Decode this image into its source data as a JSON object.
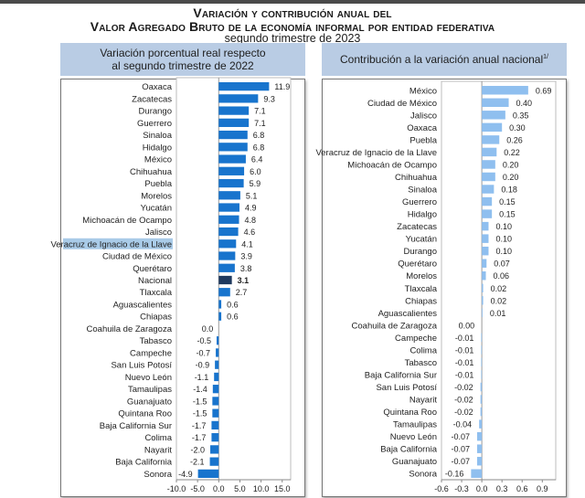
{
  "title": {
    "line1": "Variación y contribución anual del",
    "line2": "Valor Agregado Bruto de la economía informal por entidad federativa",
    "line3": "segundo trimestre de 2023"
  },
  "colors": {
    "bar_state": "#1874cd",
    "bar_national": "#1f3a5f",
    "bar_contribution": "#8fbfef",
    "header_bg": "#b9cce4",
    "highlight": "#a9cbe8"
  },
  "chart_data": [
    {
      "type": "bar",
      "orientation": "horizontal",
      "header_line1": "Variación porcentual real respecto",
      "header_line2": "al segundo trimestre de 2022",
      "categories": [
        "Oaxaca",
        "Zacatecas",
        "Durango",
        "Guerrero",
        "Sinaloa",
        "Hidalgo",
        "México",
        "Chihuahua",
        "Puebla",
        "Morelos",
        "Yucatán",
        "Michoacán de Ocampo",
        "Jalisco",
        "Veracruz de Ignacio de la Llave",
        "Ciudad de México",
        "Querétaro",
        "Nacional",
        "Tlaxcala",
        "Aguascalientes",
        "Chiapas",
        "Coahuila de Zaragoza",
        "Tabasco",
        "Campeche",
        "San Luis Potosí",
        "Nuevo León",
        "Tamaulipas",
        "Guanajuato",
        "Quintana Roo",
        "Baja California Sur",
        "Colima",
        "Nayarit",
        "Baja California",
        "Sonora"
      ],
      "values": [
        11.9,
        9.3,
        7.1,
        7.1,
        6.8,
        6.8,
        6.4,
        6.0,
        5.9,
        5.1,
        4.9,
        4.8,
        4.6,
        4.1,
        3.9,
        3.8,
        3.1,
        2.7,
        0.6,
        0.6,
        0.0,
        -0.5,
        -0.7,
        -0.9,
        -1.1,
        -1.4,
        -1.5,
        -1.5,
        -1.7,
        -1.7,
        -2.0,
        -2.1,
        -4.9
      ],
      "value_labels": [
        "11.9",
        "9.3",
        "7.1",
        "7.1",
        "6.8",
        "6.8",
        "6.4",
        "6.0",
        "5.9",
        "5.1",
        "4.9",
        "4.8",
        "4.6",
        "4.1",
        "3.9",
        "3.8",
        "3.1",
        "2.7",
        "0.6",
        "0.6",
        "0.0",
        "-0.5",
        "-0.7",
        "-0.9",
        "-1.1",
        "-1.4",
        "-1.5",
        "-1.5",
        "-1.7",
        "-1.7",
        "-2.0",
        "-2.1",
        "-4.9"
      ],
      "highlight_category": "Veracruz de Ignacio de la Llave",
      "emphasis_category": "Nacional",
      "xlim": [
        -10,
        17
      ],
      "xticks": [
        -10,
        -5,
        0,
        5,
        10,
        15
      ],
      "xtick_labels": [
        "-10.0",
        "-5.0",
        "0.0",
        "5.0",
        "10.0",
        "15.0"
      ]
    },
    {
      "type": "bar",
      "orientation": "horizontal",
      "header": "Contribución a la variación anual nacional",
      "header_note": "1/",
      "categories": [
        "México",
        "Ciudad de México",
        "Jalisco",
        "Oaxaca",
        "Puebla",
        "Veracruz de Ignacio de la Llave",
        "Michoacán de Ocampo",
        "Chihuahua",
        "Sinaloa",
        "Guerrero",
        "Hidalgo",
        "Zacatecas",
        "Yucatán",
        "Durango",
        "Querétaro",
        "Morelos",
        "Tlaxcala",
        "Chiapas",
        "Aguascalientes",
        "Coahuila de Zaragoza",
        "Campeche",
        "Colima",
        "Tabasco",
        "Baja California Sur",
        "San Luis Potosí",
        "Nayarit",
        "Quintana Roo",
        "Tamaulipas",
        "Nuevo León",
        "Baja California",
        "Guanajuato",
        "Sonora"
      ],
      "values": [
        0.69,
        0.4,
        0.35,
        0.3,
        0.26,
        0.22,
        0.2,
        0.2,
        0.18,
        0.15,
        0.15,
        0.1,
        0.1,
        0.1,
        0.07,
        0.06,
        0.02,
        0.02,
        0.01,
        0.0,
        -0.01,
        -0.01,
        -0.01,
        -0.01,
        -0.02,
        -0.02,
        -0.02,
        -0.04,
        -0.07,
        -0.07,
        -0.07,
        -0.16
      ],
      "value_labels": [
        "0.69",
        "0.40",
        "0.35",
        "0.30",
        "0.26",
        "0.22",
        "0.20",
        "0.20",
        "0.18",
        "0.15",
        "0.15",
        "0.10",
        "0.10",
        "0.10",
        "0.07",
        "0.06",
        "0.02",
        "0.02",
        "0.01",
        "0.00",
        "-0.01",
        "-0.01",
        "-0.01",
        "-0.01",
        "-0.02",
        "-0.02",
        "-0.02",
        "-0.04",
        "-0.07",
        "-0.07",
        "-0.07",
        "-0.16"
      ],
      "xlim": [
        -0.6,
        1.1
      ],
      "xticks": [
        -0.6,
        -0.3,
        0.0,
        0.3,
        0.6,
        0.9
      ],
      "xtick_labels": [
        "-0.6",
        "-0.3",
        "0.0",
        "0.3",
        "0.6",
        "0.9"
      ]
    }
  ]
}
